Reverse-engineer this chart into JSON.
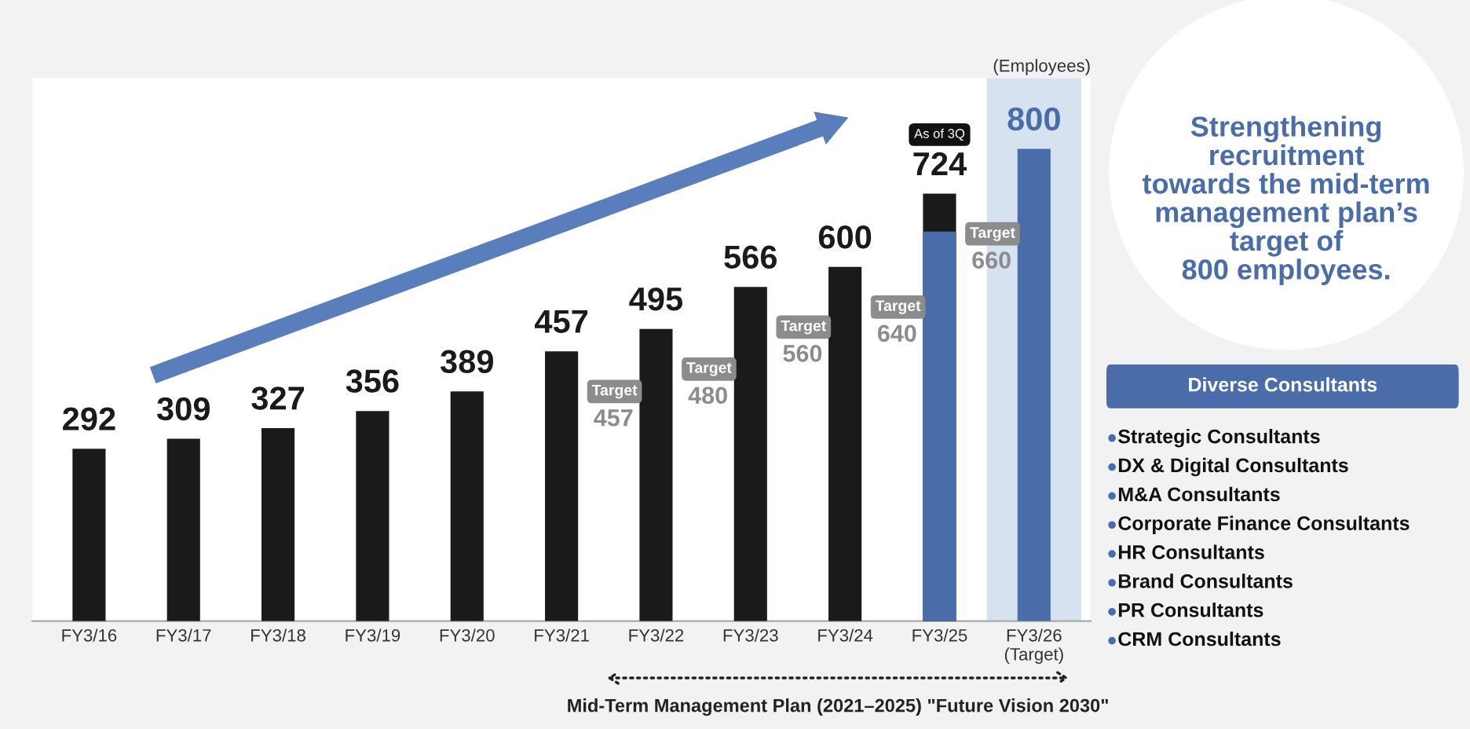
{
  "chart_data": [
    {
      "type": "bar",
      "ylabel": "(Employees)",
      "tick_labels": "x",
      "categories": [
        "FY3/16",
        "FY3/17",
        "FY3/18",
        "FY3/19",
        "FY3/20",
        "FY3/21",
        "FY3/22",
        "FY3/23",
        "FY3/24",
        "FY3/25",
        "FY3/26\n(Target)"
      ],
      "series": [
        {
          "color": "#1a1a1a",
          "values": [
            292,
            309,
            327,
            356,
            389,
            457,
            495,
            566,
            600,
            724,
            null
          ],
          "value_labels": [
            "292",
            "309",
            "327",
            "356",
            "389",
            "457",
            "495",
            "566",
            "600",
            "724",
            null
          ]
        },
        {
          "color": "#4a6daa",
          "values": [
            null,
            null,
            null,
            null,
            null,
            null,
            null,
            null,
            null,
            660,
            800
          ],
          "value_labels": [
            null,
            null,
            null,
            null,
            null,
            null,
            null,
            null,
            null,
            null,
            "800"
          ]
        }
      ],
      "bands": [
        {
          "axis": "x",
          "from": "FY3/26\n(Target)",
          "to": "FY3/26\n(Target)",
          "color": "#d6e2f0"
        }
      ],
      "annotations": [
        "As of 3Q",
        "Mid-Term Management Plan (2021–2025) \"Future Vision 2030\"",
        "Target\n457",
        "Target\n480",
        "Target\n560",
        "Target\n640",
        "Target\n660"
      ]
    },
    {
      "type": "other",
      "title": "Diverse Consultants",
      "annotations": [
        "Strengthening\nrecruitment\ntowards the mid-term\nmanagement plan’s\ntarget of\n800 employees.",
        "Strategic Consultants",
        "DX & Digital Consultants",
        "M&A Consultants",
        "Corporate Finance Consultants",
        "HR Consultants",
        "Brand Consultants",
        "PR Consultants",
        "CRM Consultants"
      ]
    }
  ]
}
